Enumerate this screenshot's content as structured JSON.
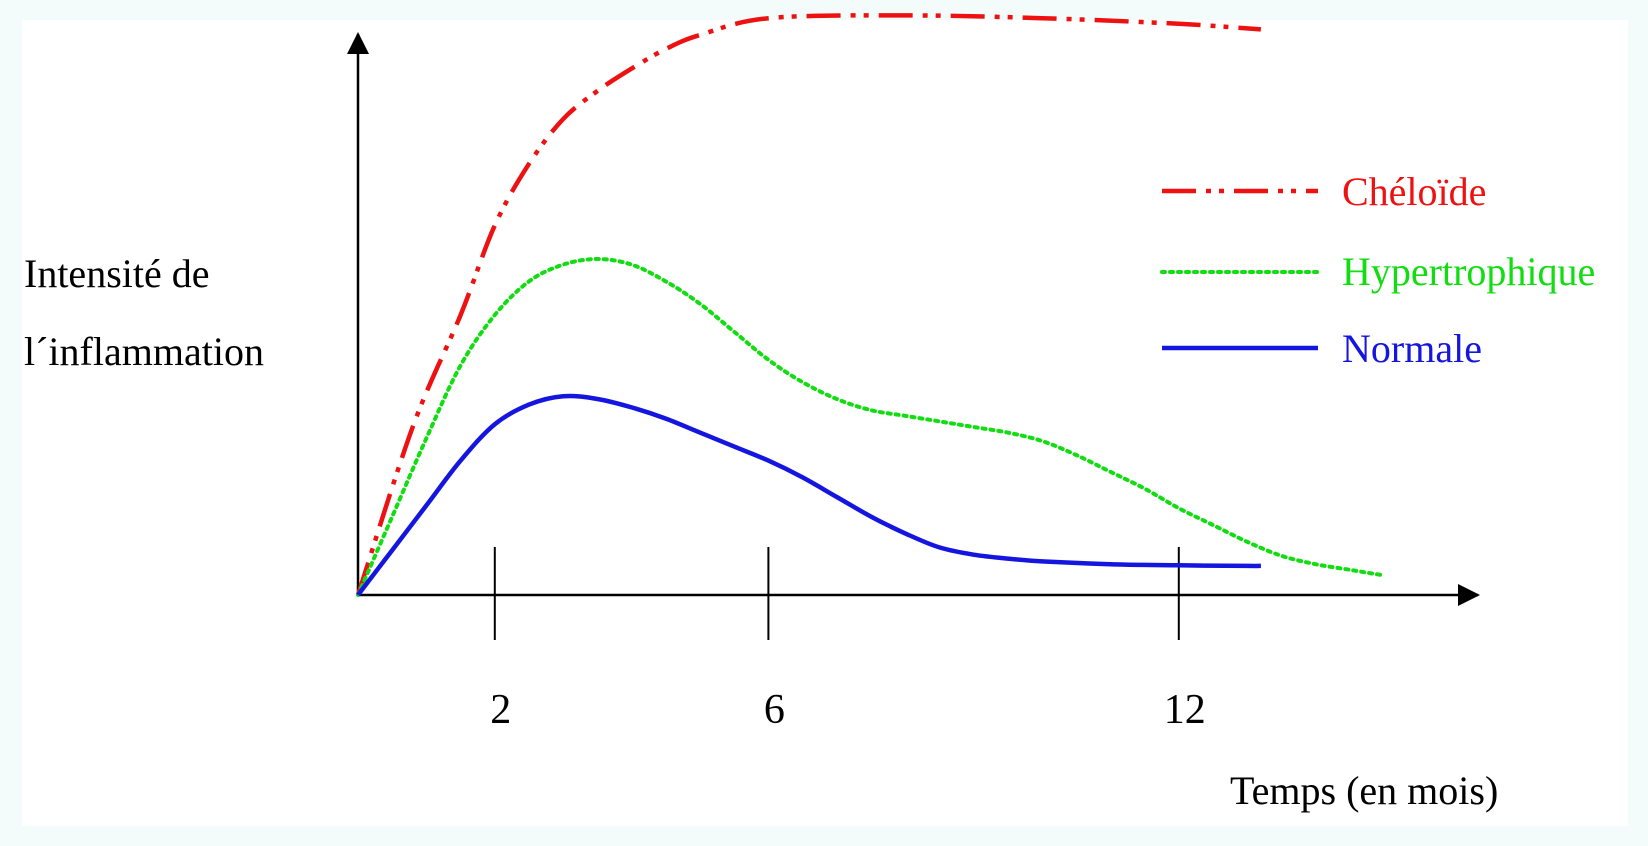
{
  "chart_data": {
    "type": "line",
    "title": "",
    "ylabel_lines": [
      "Intensité de",
      "l´inflammation"
    ],
    "xlabel": "Temps (en mois)",
    "xticks": [
      "2",
      "6",
      "12"
    ],
    "xtick_values": [
      2,
      6,
      12
    ],
    "xlim": [
      0,
      16
    ],
    "ylim": [
      0,
      10
    ],
    "grid": false,
    "legend_position": "right",
    "series": [
      {
        "name": "Chéloïde",
        "color": "#ee1111",
        "line_style": "dash-dot-dot",
        "x": [
          0,
          0.8,
          1.5,
          2,
          2.5,
          3,
          3.5,
          4,
          4.5,
          5,
          6,
          8,
          10,
          12,
          13.2
        ],
        "y": [
          0,
          3.0,
          5.0,
          6.6,
          7.7,
          8.5,
          9.0,
          9.4,
          9.75,
          10.0,
          10.3,
          10.35,
          10.3,
          10.2,
          10.1
        ]
      },
      {
        "name": "Hypertrophique",
        "color": "#11dd11",
        "line_style": "dotted",
        "x": [
          0,
          0.5,
          1,
          1.5,
          2,
          2.5,
          3,
          3.5,
          4,
          4.5,
          5,
          5.5,
          6,
          6.5,
          7,
          7.5,
          8,
          8.5,
          9,
          9.5,
          10,
          10.5,
          11,
          11.5,
          12,
          12.5,
          13,
          13.5,
          14,
          14.5,
          15
        ],
        "y": [
          0,
          1.4,
          2.8,
          4.1,
          5.0,
          5.6,
          5.9,
          6.0,
          5.9,
          5.6,
          5.2,
          4.7,
          4.2,
          3.8,
          3.5,
          3.3,
          3.2,
          3.1,
          3.0,
          2.9,
          2.75,
          2.5,
          2.2,
          1.9,
          1.55,
          1.25,
          0.95,
          0.7,
          0.55,
          0.45,
          0.35
        ]
      },
      {
        "name": "Normale",
        "color": "#1515e0",
        "line_style": "solid",
        "x": [
          0,
          0.5,
          1,
          1.5,
          2,
          2.5,
          3,
          3.5,
          4,
          4.5,
          5,
          5.5,
          6,
          6.5,
          7,
          7.5,
          8,
          8.5,
          9,
          9.5,
          10,
          11,
          12,
          13,
          13.2
        ],
        "y": [
          0,
          0.8,
          1.6,
          2.4,
          3.05,
          3.4,
          3.55,
          3.5,
          3.35,
          3.15,
          2.9,
          2.65,
          2.4,
          2.1,
          1.75,
          1.4,
          1.1,
          0.85,
          0.72,
          0.65,
          0.6,
          0.55,
          0.53,
          0.52,
          0.52
        ]
      }
    ]
  }
}
